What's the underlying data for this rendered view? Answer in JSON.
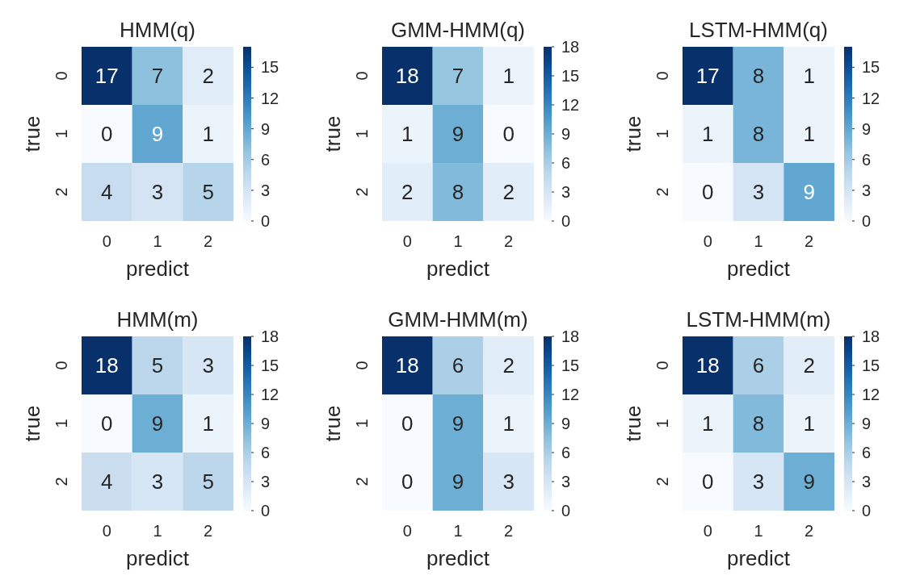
{
  "chart_data": [
    {
      "type": "heatmap",
      "title": "HMM(q)",
      "xlabel": "predict",
      "ylabel": "true",
      "categories": [
        "0",
        "1",
        "2"
      ],
      "y_categories": [
        "0",
        "1",
        "2"
      ],
      "cells": [
        [
          17,
          7,
          2
        ],
        [
          0,
          9,
          1
        ],
        [
          4,
          3,
          5
        ]
      ],
      "clim": [
        0,
        17
      ],
      "cticks": [
        0,
        3,
        6,
        9,
        12,
        15
      ],
      "data_labels": true
    },
    {
      "type": "heatmap",
      "title": "GMM-HMM(q)",
      "xlabel": "predict",
      "ylabel": "true",
      "categories": [
        "0",
        "1",
        "2"
      ],
      "y_categories": [
        "0",
        "1",
        "2"
      ],
      "cells": [
        [
          18,
          7,
          1
        ],
        [
          1,
          9,
          0
        ],
        [
          2,
          8,
          2
        ]
      ],
      "clim": [
        0,
        18
      ],
      "cticks": [
        0,
        3,
        6,
        9,
        12,
        15,
        18
      ],
      "data_labels": true
    },
    {
      "type": "heatmap",
      "title": "LSTM-HMM(q)",
      "xlabel": "predict",
      "ylabel": "true",
      "categories": [
        "0",
        "1",
        "2"
      ],
      "y_categories": [
        "0",
        "1",
        "2"
      ],
      "cells": [
        [
          17,
          8,
          1
        ],
        [
          1,
          8,
          1
        ],
        [
          0,
          3,
          9
        ]
      ],
      "clim": [
        0,
        17
      ],
      "cticks": [
        0,
        3,
        6,
        9,
        12,
        15
      ],
      "data_labels": true
    },
    {
      "type": "heatmap",
      "title": "HMM(m)",
      "xlabel": "predict",
      "ylabel": "true",
      "categories": [
        "0",
        "1",
        "2"
      ],
      "y_categories": [
        "0",
        "1",
        "2"
      ],
      "cells": [
        [
          18,
          5,
          3
        ],
        [
          0,
          9,
          1
        ],
        [
          4,
          3,
          5
        ]
      ],
      "clim": [
        0,
        18
      ],
      "cticks": [
        0,
        3,
        6,
        9,
        12,
        15,
        18
      ],
      "data_labels": true
    },
    {
      "type": "heatmap",
      "title": "GMM-HMM(m)",
      "xlabel": "predict",
      "ylabel": "true",
      "categories": [
        "0",
        "1",
        "2"
      ],
      "y_categories": [
        "0",
        "1",
        "2"
      ],
      "cells": [
        [
          18,
          6,
          2
        ],
        [
          0,
          9,
          1
        ],
        [
          0,
          9,
          3
        ]
      ],
      "clim": [
        0,
        18
      ],
      "cticks": [
        0,
        3,
        6,
        9,
        12,
        15,
        18
      ],
      "data_labels": true
    },
    {
      "type": "heatmap",
      "title": "LSTM-HMM(m)",
      "xlabel": "predict",
      "ylabel": "true",
      "categories": [
        "0",
        "1",
        "2"
      ],
      "y_categories": [
        "0",
        "1",
        "2"
      ],
      "cells": [
        [
          18,
          6,
          2
        ],
        [
          1,
          8,
          1
        ],
        [
          0,
          3,
          9
        ]
      ],
      "clim": [
        0,
        18
      ],
      "cticks": [
        0,
        3,
        6,
        9,
        12,
        15,
        18
      ],
      "data_labels": true
    }
  ]
}
